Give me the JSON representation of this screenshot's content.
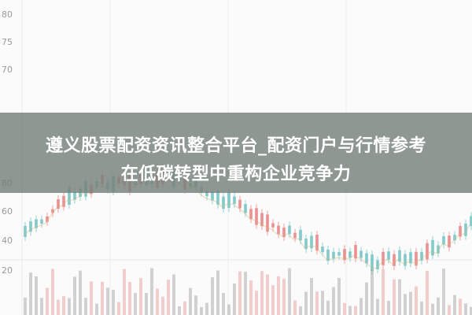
{
  "banner": {
    "lines": [
      "遵义股票配资资讯整合平台_配资门户与行情参考",
      "在低碳转型中重构企业竞争力"
    ]
  },
  "background": {
    "axis_labels": [
      "80",
      "75",
      "70",
      "80",
      "60",
      "40",
      "20"
    ]
  }
}
